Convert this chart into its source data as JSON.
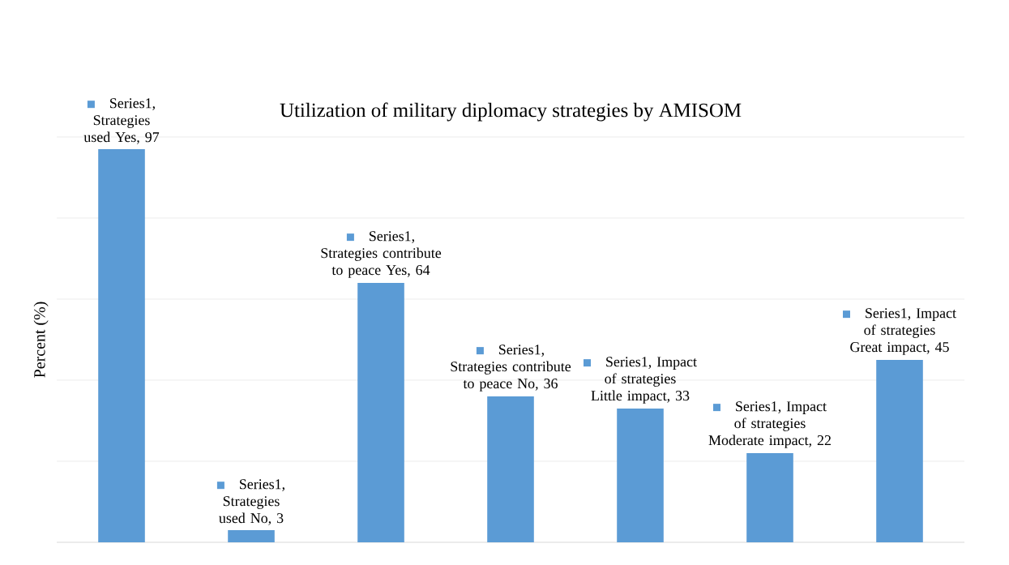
{
  "chart_data": {
    "type": "bar",
    "title": "Utilization of military diplomacy strategies by AMISOM",
    "ylabel": "Percent (%)",
    "categories": [
      null,
      null,
      null,
      null,
      null,
      null,
      null
    ],
    "values": [
      97,
      3,
      64,
      36,
      33,
      22,
      45
    ],
    "color": "#5b9bd5",
    "value_labels": [
      "Series1, Strategies used Yes, 97",
      "Series1, Strategies used No, 3",
      "Series1, Strategies contribute to peace Yes, 64",
      "Series1, Strategies contribute to peace No, 36",
      "Series1, Impact of strategies Little impact, 33",
      "Series1, Impact of strategies Moderate impact, 22",
      "Series1, Impact of strategies Great impact, 45"
    ],
    "ylim": [
      0,
      100
    ],
    "yticks": [
      {
        "value": 0,
        "label": null
      },
      {
        "value": 20,
        "label": null
      },
      {
        "value": 40,
        "label": null
      },
      {
        "value": 60,
        "label": null
      },
      {
        "value": 80,
        "label": null
      },
      {
        "value": 100,
        "label": null
      }
    ],
    "grid": "y"
  }
}
